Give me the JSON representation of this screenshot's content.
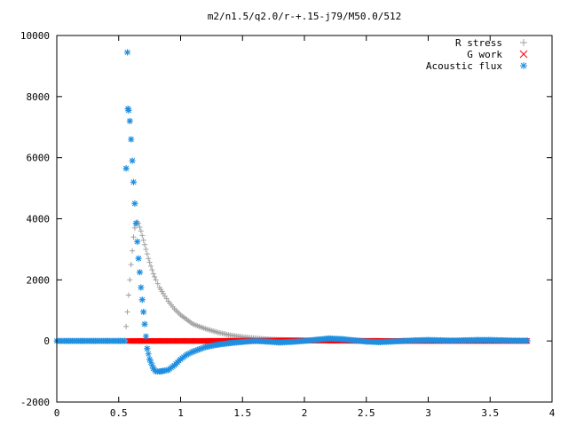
{
  "chart_data": {
    "type": "scatter",
    "title": "m2/n1.5/q2.0/r-+.15-j79/M50.0/512",
    "xlabel": "",
    "ylabel": "",
    "xlim": [
      0,
      4
    ],
    "ylim": [
      -2000,
      10000
    ],
    "grid": false,
    "legend_position": "top-right",
    "x_ticks": [
      "0",
      "0.5",
      "1",
      "1.5",
      "2",
      "2.5",
      "3",
      "3.5",
      "4"
    ],
    "y_ticks": [
      "-2000",
      "0",
      "2000",
      "4000",
      "6000",
      "8000",
      "10000"
    ],
    "series": [
      {
        "name": "R stress",
        "marker": "plus",
        "color": "#a0a0a0",
        "x": [
          0.0,
          0.1,
          0.2,
          0.3,
          0.4,
          0.5,
          0.55,
          0.57,
          0.58,
          0.59,
          0.6,
          0.61,
          0.62,
          0.63,
          0.64,
          0.65,
          0.66,
          0.68,
          0.7,
          0.72,
          0.74,
          0.76,
          0.78,
          0.8,
          0.83,
          0.86,
          0.9,
          0.95,
          1.0,
          1.05,
          1.1,
          1.2,
          1.3,
          1.4,
          1.5,
          1.6,
          1.7,
          1.8,
          2.0,
          2.2,
          2.5,
          2.8,
          3.2,
          3.6,
          3.8
        ],
        "y": [
          0,
          0,
          0,
          0,
          0,
          0,
          0,
          950,
          1500,
          2000,
          2500,
          2950,
          3400,
          3700,
          3850,
          3900,
          3850,
          3600,
          3300,
          3000,
          2700,
          2450,
          2200,
          2000,
          1750,
          1550,
          1300,
          1050,
          850,
          700,
          550,
          400,
          280,
          190,
          130,
          90,
          60,
          40,
          20,
          10,
          5,
          0,
          0,
          0,
          0
        ]
      },
      {
        "name": "G work",
        "marker": "cross",
        "color": "#ff0000",
        "x": [
          0.58,
          0.65,
          0.75,
          0.85,
          1.0,
          1.2,
          1.4,
          1.6,
          1.8,
          2.0,
          2.2,
          2.4,
          2.6,
          2.8,
          3.0,
          3.2,
          3.4,
          3.6,
          3.8
        ],
        "y": [
          0,
          0,
          0,
          0,
          0,
          0,
          5,
          10,
          15,
          15,
          10,
          5,
          0,
          0,
          0,
          0,
          0,
          0,
          0
        ]
      },
      {
        "name": "Acoustic flux",
        "marker": "star",
        "color": "#1f8fe0",
        "x": [
          0.0,
          0.1,
          0.2,
          0.3,
          0.4,
          0.5,
          0.55,
          0.56,
          0.57,
          0.575,
          0.58,
          0.59,
          0.6,
          0.61,
          0.62,
          0.63,
          0.64,
          0.65,
          0.66,
          0.67,
          0.68,
          0.69,
          0.7,
          0.71,
          0.72,
          0.73,
          0.75,
          0.78,
          0.8,
          0.83,
          0.86,
          0.9,
          0.95,
          1.0,
          1.05,
          1.1,
          1.2,
          1.3,
          1.4,
          1.5,
          1.6,
          1.7,
          1.8,
          1.9,
          2.0,
          2.1,
          2.2,
          2.3,
          2.4,
          2.5,
          2.6,
          2.7,
          2.8,
          2.9,
          3.0,
          3.1,
          3.2,
          3.3,
          3.4,
          3.5,
          3.6,
          3.7,
          3.8
        ],
        "y": [
          0,
          0,
          0,
          0,
          0,
          0,
          0,
          5650,
          9450,
          7600,
          7550,
          7200,
          6600,
          5900,
          5200,
          4500,
          3850,
          3250,
          2700,
          2250,
          1750,
          1350,
          950,
          550,
          150,
          -250,
          -600,
          -900,
          -1000,
          -1000,
          -980,
          -950,
          -800,
          -600,
          -450,
          -350,
          -200,
          -120,
          -70,
          -30,
          0,
          -20,
          -50,
          -30,
          0,
          40,
          80,
          60,
          20,
          -20,
          -40,
          -20,
          0,
          20,
          30,
          20,
          10,
          20,
          30,
          30,
          20,
          10,
          10
        ]
      }
    ]
  }
}
